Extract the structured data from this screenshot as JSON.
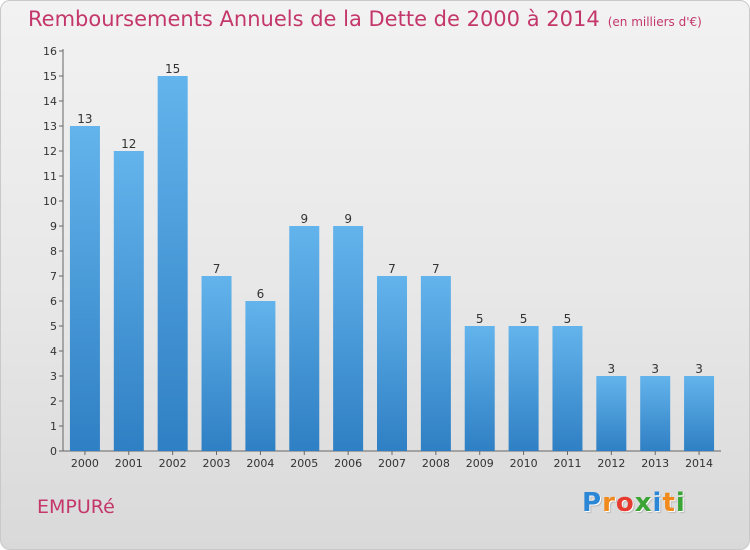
{
  "header": {
    "title": "Remboursements Annuels de la Dette de 2000 à 2014",
    "subtitle": "(en milliers d'€)"
  },
  "footer": {
    "commune": "EMPURé",
    "logo_letters": [
      "P",
      "r",
      "o",
      "x",
      "i",
      "t",
      "i"
    ],
    "logo_colors": [
      "#2b86d6",
      "#f08a1c",
      "#e63b2e",
      "#3aa535",
      "#2b86d6",
      "#f08a1c",
      "#3aa535"
    ]
  },
  "colors": {
    "title": "#c4376a",
    "bar_top": "#63b4ec",
    "bar_bottom": "#2f7fc4"
  },
  "chart_data": {
    "type": "bar",
    "categories": [
      "2000",
      "2001",
      "2002",
      "2003",
      "2004",
      "2005",
      "2006",
      "2007",
      "2008",
      "2009",
      "2010",
      "2011",
      "2012",
      "2013",
      "2014"
    ],
    "values": [
      13,
      12,
      15,
      7,
      6,
      9,
      9,
      7,
      7,
      5,
      5,
      5,
      3,
      3,
      3
    ],
    "ylim": [
      0,
      16
    ],
    "yticks": [
      0,
      1,
      2,
      3,
      4,
      5,
      6,
      7,
      8,
      9,
      10,
      11,
      12,
      13,
      14,
      15,
      16
    ],
    "data_labels": true,
    "grid": false,
    "title": "Remboursements Annuels de la Dette de 2000 à 2014",
    "xlabel": "",
    "ylabel": ""
  }
}
